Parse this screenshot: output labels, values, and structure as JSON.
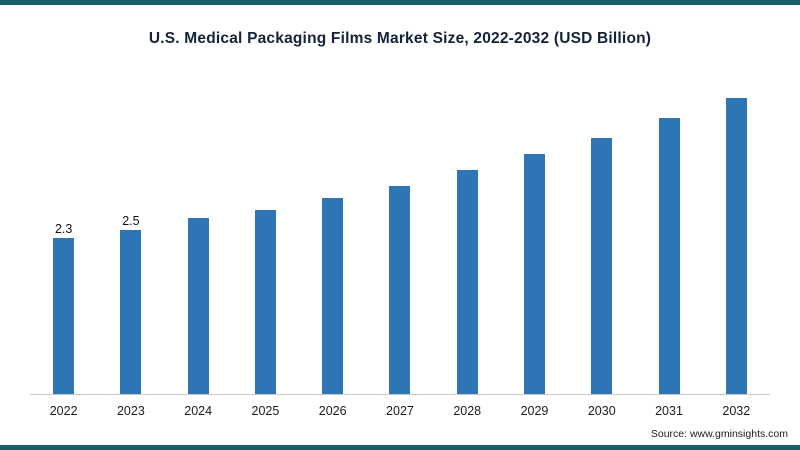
{
  "colors": {
    "bar": "#2e75b6",
    "border_strip": "#14616c",
    "axis_line": "#c9c9c9"
  },
  "source": "Source: www.gminsights.com",
  "chart_data": {
    "type": "bar",
    "title": "U.S. Medical Packaging Films Market Size, 2022-2032 (USD Billion)",
    "xlabel": "",
    "ylabel": "",
    "categories": [
      "2022",
      "2023",
      "2024",
      "2025",
      "2026",
      "2027",
      "2028",
      "2029",
      "2030",
      "2031",
      "2032"
    ],
    "values": [
      2.3,
      2.5,
      2.8,
      3.0,
      3.3,
      3.6,
      4.0,
      4.4,
      4.8,
      5.3,
      5.8
    ],
    "data_labels": {
      "2022": "2.3",
      "2023": "2.5"
    },
    "unit": "USD Billion",
    "legend": "none",
    "grid": "off",
    "y_axis_visible": false,
    "baseline_truncated": true
  }
}
